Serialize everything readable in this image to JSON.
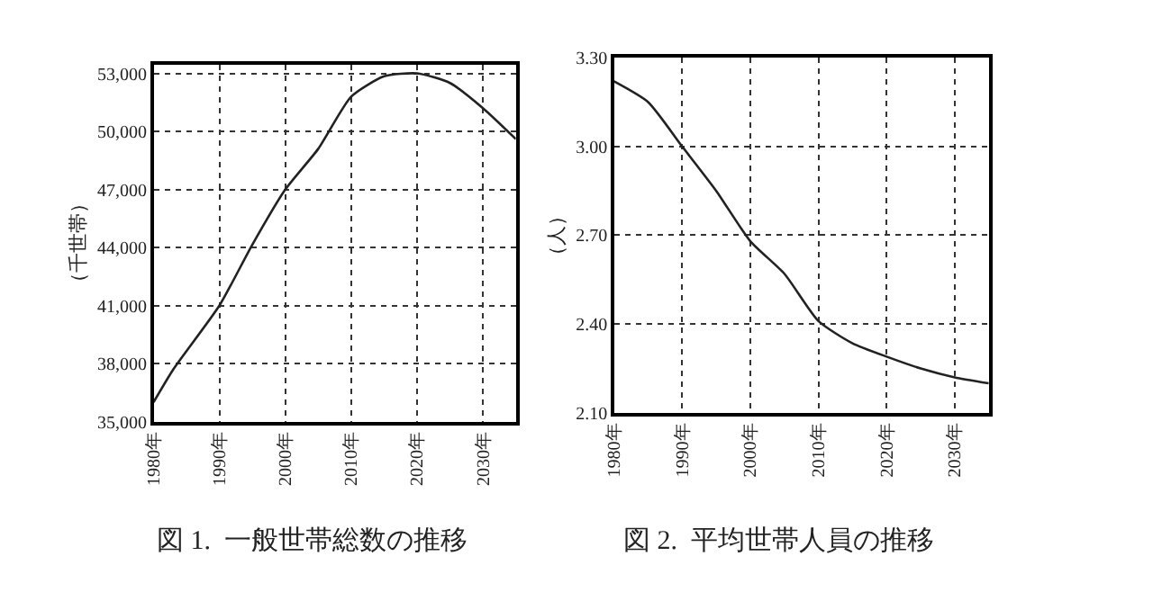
{
  "chart_data": [
    {
      "type": "line",
      "title": "図 1.  一般世帯総数の推移",
      "ylabel": "（千世帯）",
      "grid": true,
      "marker": "none",
      "line_style": "solid",
      "x": [
        1980,
        1983,
        1990,
        1995,
        2000,
        2005,
        2010,
        2015,
        2020,
        2025,
        2030,
        2035
      ],
      "series": [
        {
          "color": "#222222",
          "values": [
            36000,
            37700,
            41000,
            44150,
            47000,
            49100,
            51800,
            52850,
            53000,
            52500,
            51200,
            49600
          ]
        }
      ],
      "xlim": [
        1980,
        2035
      ],
      "ylim": [
        35000,
        53450
      ],
      "xticks": [
        {
          "value": 1980,
          "label": "1980年"
        },
        {
          "value": 1990,
          "label": "1990年"
        },
        {
          "value": 2000,
          "label": "2000年"
        },
        {
          "value": 2010,
          "label": "2010年"
        },
        {
          "value": 2020,
          "label": "2020年"
        },
        {
          "value": 2030,
          "label": "2030年"
        }
      ],
      "yticks": [
        {
          "value": 35000,
          "label": "35,000"
        },
        {
          "value": 38000,
          "label": "38,000"
        },
        {
          "value": 41000,
          "label": "41,000"
        },
        {
          "value": 44000,
          "label": "44,000"
        },
        {
          "value": 47000,
          "label": "47,000"
        },
        {
          "value": 50000,
          "label": "50,000"
        },
        {
          "value": 53000,
          "label": "53,000"
        }
      ]
    },
    {
      "type": "line",
      "title": "図 2.  平均世帯人員の推移",
      "ylabel": "（人）",
      "grid": true,
      "marker": "none",
      "line_style": "solid",
      "x": [
        1980,
        1985,
        1990,
        1995,
        2000,
        2005,
        2010,
        2015,
        2020,
        2025,
        2030,
        2035
      ],
      "series": [
        {
          "color": "#222222",
          "values": [
            3.22,
            3.15,
            3.0,
            2.85,
            2.68,
            2.57,
            2.41,
            2.335,
            2.29,
            2.25,
            2.22,
            2.2
          ]
        }
      ],
      "xlim": [
        1980,
        2035
      ],
      "ylim": [
        2.1,
        3.3
      ],
      "xticks": [
        {
          "value": 1980,
          "label": "1980年"
        },
        {
          "value": 1990,
          "label": "1990年"
        },
        {
          "value": 2000,
          "label": "2000年"
        },
        {
          "value": 2010,
          "label": "2010年"
        },
        {
          "value": 2020,
          "label": "2020年"
        },
        {
          "value": 2030,
          "label": "2030年"
        }
      ],
      "yticks": [
        {
          "value": 2.1,
          "label": "2.10"
        },
        {
          "value": 2.4,
          "label": "2.40"
        },
        {
          "value": 2.7,
          "label": "2.70"
        },
        {
          "value": 3.0,
          "label": "3.00"
        },
        {
          "value": 3.3,
          "label": "3.30"
        }
      ]
    }
  ]
}
